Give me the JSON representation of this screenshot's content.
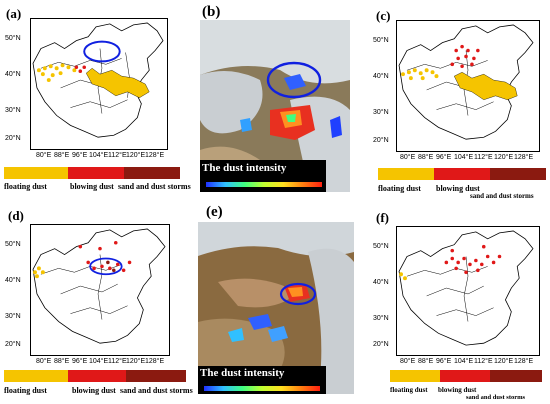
{
  "panels": {
    "a": {
      "label": "(a)"
    },
    "b": {
      "label": "(b)"
    },
    "c": {
      "label": "(c)"
    },
    "d": {
      "label": "(d)"
    },
    "e": {
      "label": "(e)"
    },
    "f": {
      "label": "(f)"
    }
  },
  "axes": {
    "lat_ticks": [
      "50°N",
      "40°N",
      "30°N",
      "20°N"
    ],
    "lon_ticks": [
      "80°E",
      "88°E",
      "96°E",
      "104°E",
      "112°E",
      "120°E",
      "128°E"
    ]
  },
  "legend": {
    "floating": "floating dust",
    "blowing": "blowing dust",
    "storms": "sand and dust storms",
    "colors": {
      "floating": "#f5c400",
      "blowing": "#e01818",
      "storms": "#8b1a10"
    }
  },
  "satellite": {
    "title": "The dust intensity"
  },
  "colors": {
    "ellipse": "#1020e0",
    "floating_dot": "#f5c400",
    "blowing_dot": "#e01818"
  }
}
